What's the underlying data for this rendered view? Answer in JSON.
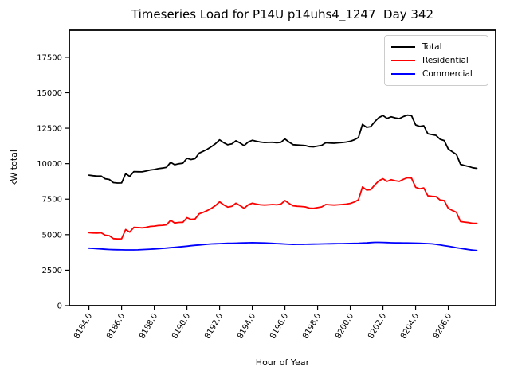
{
  "title": "Timeseries Load for P14U p14uhs4_1247  Day 342",
  "colors": {
    "total": "#000000",
    "residential": "#ff0000",
    "commercial": "#0000ff",
    "legend_border": "#cccccc",
    "axes": "#000000"
  },
  "chart_data": {
    "type": "line",
    "title": "Timeseries Load for P14U p14uhs4_1247  Day 342",
    "xlabel": "Hour of Year",
    "ylabel": "kW total",
    "xlim": [
      8182.8,
      8208.9
    ],
    "ylim": [
      0,
      19400
    ],
    "x_ticks": [
      8184.0,
      8186.0,
      8188.0,
      8190.0,
      8192.0,
      8194.0,
      8196.0,
      8198.0,
      8200.0,
      8202.0,
      8204.0,
      8206.0
    ],
    "x_tick_labels": [
      "8184.0",
      "8186.0",
      "8188.0",
      "8190.0",
      "8192.0",
      "8194.0",
      "8196.0",
      "8198.0",
      "8200.0",
      "8202.0",
      "8204.0",
      "8206.0"
    ],
    "x_tick_rotation": 60,
    "y_ticks": [
      0,
      2500,
      5000,
      7500,
      10000,
      12500,
      15000,
      17500
    ],
    "y_tick_labels": [
      "0",
      "2500",
      "5000",
      "7500",
      "10000",
      "12500",
      "15000",
      "17500"
    ],
    "grid": false,
    "legend_position": "upper right",
    "x": [
      8184.0,
      8184.25,
      8184.5,
      8184.75,
      8185.0,
      8185.25,
      8185.5,
      8185.75,
      8186.0,
      8186.25,
      8186.5,
      8186.75,
      8187.0,
      8187.25,
      8187.5,
      8187.75,
      8188.0,
      8188.25,
      8188.5,
      8188.75,
      8189.0,
      8189.25,
      8189.5,
      8189.75,
      8190.0,
      8190.25,
      8190.5,
      8190.75,
      8191.0,
      8191.25,
      8191.5,
      8191.75,
      8192.0,
      8192.25,
      8192.5,
      8192.75,
      8193.0,
      8193.25,
      8193.5,
      8193.75,
      8194.0,
      8194.25,
      8194.5,
      8194.75,
      8195.0,
      8195.25,
      8195.5,
      8195.75,
      8196.0,
      8196.25,
      8196.5,
      8196.75,
      8197.0,
      8197.25,
      8197.5,
      8197.75,
      8198.0,
      8198.25,
      8198.5,
      8198.75,
      8199.0,
      8199.25,
      8199.5,
      8199.75,
      8200.0,
      8200.25,
      8200.5,
      8200.75,
      8201.0,
      8201.25,
      8201.5,
      8201.75,
      8202.0,
      8202.25,
      8202.5,
      8202.75,
      8203.0,
      8203.25,
      8203.5,
      8203.75,
      8204.0,
      8204.25,
      8204.5,
      8204.75,
      8205.0,
      8205.25,
      8205.5,
      8205.75,
      8206.0,
      8206.25,
      8206.5,
      8206.75,
      8207.0,
      8207.25,
      8207.5,
      8207.75
    ],
    "series": [
      {
        "name": "Total",
        "color": "#000000",
        "values": [
          9190,
          9150,
          9120,
          9120,
          8930,
          8885,
          8660,
          8635,
          8640,
          9290,
          9105,
          9440,
          9430,
          9425,
          9480,
          9555,
          9590,
          9650,
          9690,
          9745,
          10090,
          9925,
          9990,
          10030,
          10380,
          10290,
          10350,
          10745,
          10870,
          11020,
          11195,
          11410,
          11680,
          11480,
          11330,
          11395,
          11610,
          11460,
          11270,
          11530,
          11645,
          11580,
          11525,
          11490,
          11500,
          11505,
          11470,
          11505,
          11740,
          11525,
          11340,
          11315,
          11300,
          11275,
          11200,
          11185,
          11240,
          11295,
          11470,
          11455,
          11440,
          11465,
          11490,
          11525,
          11580,
          11685,
          11840,
          12765,
          12560,
          12610,
          12960,
          13245,
          13390,
          13190,
          13300,
          13225,
          13170,
          13315,
          13420,
          13385,
          12730,
          12620,
          12670,
          12105,
          12050,
          11995,
          11720,
          11630,
          11030,
          10830,
          10650,
          9955,
          9870,
          9800,
          9710,
          9670
        ]
      },
      {
        "name": "Residential",
        "color": "#ff0000",
        "values": [
          5140,
          5120,
          5110,
          5130,
          4960,
          4930,
          4720,
          4700,
          4710,
          5360,
          5180,
          5510,
          5500,
          5480,
          5520,
          5580,
          5600,
          5640,
          5660,
          5690,
          6010,
          5820,
          5860,
          5870,
          6190,
          6070,
          6100,
          6470,
          6570,
          6700,
          6850,
          7050,
          7310,
          7100,
          6940,
          7000,
          7210,
          7050,
          6850,
          7100,
          7210,
          7150,
          7100,
          7080,
          7100,
          7120,
          7100,
          7150,
          7400,
          7200,
          7030,
          7000,
          6980,
          6950,
          6870,
          6850,
          6900,
          6950,
          7120,
          7100,
          7080,
          7100,
          7120,
          7150,
          7200,
          7300,
          7450,
          8360,
          8140,
          8170,
          8500,
          8790,
          8940,
          8750,
          8870,
          8800,
          8750,
          8900,
          9010,
          8980,
          8330,
          8230,
          8290,
          7740,
          7700,
          7680,
          7440,
          7400,
          6850,
          6700,
          6570,
          5920,
          5880,
          5850,
          5800,
          5790
        ]
      },
      {
        "name": "Commercial",
        "color": "#0000ff",
        "values": [
          4050,
          4030,
          4010,
          3990,
          3970,
          3955,
          3940,
          3935,
          3930,
          3927,
          3925,
          3927,
          3930,
          3945,
          3960,
          3975,
          3990,
          4010,
          4030,
          4055,
          4080,
          4105,
          4130,
          4160,
          4190,
          4220,
          4250,
          4275,
          4300,
          4322,
          4345,
          4358,
          4370,
          4380,
          4390,
          4395,
          4400,
          4410,
          4420,
          4428,
          4435,
          4430,
          4425,
          4412,
          4400,
          4385,
          4370,
          4355,
          4340,
          4325,
          4310,
          4315,
          4320,
          4325,
          4330,
          4335,
          4340,
          4345,
          4350,
          4355,
          4360,
          4365,
          4370,
          4375,
          4380,
          4385,
          4390,
          4405,
          4420,
          4440,
          4460,
          4455,
          4450,
          4440,
          4430,
          4425,
          4420,
          4415,
          4410,
          4405,
          4400,
          4390,
          4380,
          4365,
          4350,
          4315,
          4280,
          4230,
          4180,
          4130,
          4080,
          4035,
          3990,
          3950,
          3910,
          3880
        ]
      }
    ]
  }
}
